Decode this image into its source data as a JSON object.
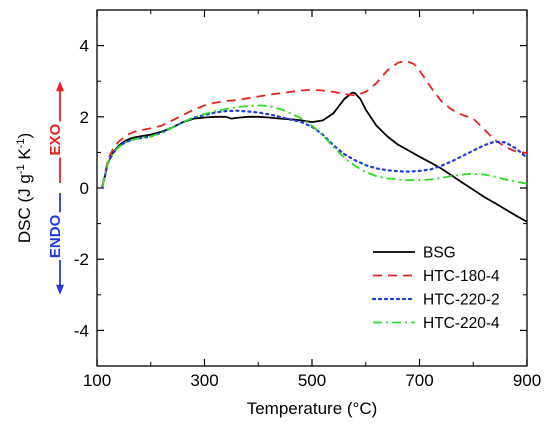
{
  "chart_data": {
    "type": "line",
    "xlabel": "Temperature (°C)",
    "ylabel": "DSC (J g⁻¹ K⁻¹)",
    "xlim": [
      100,
      900
    ],
    "ylim": [
      -5,
      5
    ],
    "xticks": [
      100,
      300,
      500,
      700,
      900
    ],
    "yticks": [
      -4,
      -2,
      0,
      2,
      4
    ],
    "grid": false,
    "legend": "bottom-right",
    "annotations": [
      {
        "text": "EXO",
        "color": "#e8231f",
        "direction": "up"
      },
      {
        "text": "ENDO",
        "color": "#1f3cd8",
        "direction": "down"
      }
    ],
    "series": [
      {
        "name": "BSG",
        "color": "#000000",
        "dash": "solid",
        "x": [
          110,
          115,
          120,
          130,
          140,
          150,
          160,
          170,
          180,
          200,
          220,
          240,
          260,
          280,
          300,
          320,
          340,
          350,
          360,
          380,
          400,
          420,
          440,
          460,
          480,
          500,
          520,
          540,
          560,
          575,
          580,
          590,
          600,
          620,
          640,
          660,
          680,
          700,
          720,
          740,
          760,
          780,
          800,
          820,
          840,
          860,
          880,
          900
        ],
        "y": [
          0.05,
          0.35,
          0.7,
          1.0,
          1.18,
          1.3,
          1.38,
          1.42,
          1.45,
          1.5,
          1.58,
          1.7,
          1.85,
          1.95,
          1.98,
          2.0,
          2.0,
          1.95,
          1.97,
          2.0,
          2.0,
          1.98,
          1.95,
          1.93,
          1.9,
          1.85,
          1.9,
          2.1,
          2.5,
          2.68,
          2.66,
          2.5,
          2.2,
          1.75,
          1.45,
          1.22,
          1.05,
          0.88,
          0.72,
          0.55,
          0.35,
          0.15,
          -0.05,
          -0.25,
          -0.42,
          -0.6,
          -0.78,
          -0.95
        ]
      },
      {
        "name": "HTC-180-4",
        "color": "#e8231f",
        "dash": "dashed",
        "x": [
          110,
          115,
          120,
          130,
          140,
          150,
          160,
          170,
          180,
          200,
          220,
          240,
          260,
          280,
          300,
          320,
          340,
          360,
          380,
          400,
          420,
          440,
          460,
          480,
          500,
          520,
          540,
          560,
          580,
          600,
          620,
          640,
          660,
          675,
          690,
          700,
          720,
          740,
          760,
          780,
          800,
          820,
          840,
          860,
          880,
          900
        ],
        "y": [
          0.05,
          0.4,
          0.8,
          1.1,
          1.3,
          1.42,
          1.52,
          1.58,
          1.62,
          1.68,
          1.75,
          1.9,
          2.05,
          2.2,
          2.32,
          2.4,
          2.44,
          2.47,
          2.52,
          2.57,
          2.62,
          2.66,
          2.7,
          2.74,
          2.76,
          2.74,
          2.7,
          2.64,
          2.6,
          2.7,
          2.95,
          3.3,
          3.52,
          3.57,
          3.48,
          3.3,
          2.85,
          2.45,
          2.2,
          2.05,
          1.95,
          1.65,
          1.35,
          1.15,
          1.02,
          0.98
        ]
      },
      {
        "name": "HTC-220-2",
        "color": "#1f3cd8",
        "dash": "dotted",
        "x": [
          110,
          115,
          120,
          130,
          140,
          150,
          160,
          170,
          180,
          200,
          220,
          240,
          260,
          280,
          300,
          320,
          340,
          360,
          380,
          400,
          420,
          440,
          460,
          480,
          500,
          520,
          540,
          560,
          580,
          600,
          620,
          640,
          660,
          680,
          700,
          720,
          740,
          760,
          780,
          800,
          820,
          840,
          860,
          880,
          900
        ],
        "y": [
          0.05,
          0.35,
          0.7,
          0.98,
          1.15,
          1.26,
          1.33,
          1.37,
          1.4,
          1.45,
          1.55,
          1.7,
          1.85,
          1.98,
          2.05,
          2.12,
          2.16,
          2.17,
          2.15,
          2.12,
          2.07,
          2.0,
          1.92,
          1.85,
          1.72,
          1.5,
          1.2,
          0.95,
          0.78,
          0.64,
          0.55,
          0.5,
          0.47,
          0.46,
          0.48,
          0.52,
          0.62,
          0.75,
          0.9,
          1.05,
          1.2,
          1.3,
          1.28,
          1.1,
          0.85
        ]
      },
      {
        "name": "HTC-220-4",
        "color": "#2ddc23",
        "dash": "dashdot",
        "x": [
          110,
          115,
          120,
          130,
          140,
          150,
          160,
          170,
          180,
          200,
          220,
          240,
          260,
          280,
          300,
          320,
          340,
          360,
          380,
          400,
          420,
          440,
          460,
          480,
          500,
          520,
          540,
          560,
          580,
          600,
          620,
          640,
          660,
          680,
          700,
          720,
          740,
          760,
          780,
          800,
          820,
          840,
          860,
          880,
          900
        ],
        "y": [
          0.05,
          0.35,
          0.7,
          0.98,
          1.15,
          1.26,
          1.33,
          1.37,
          1.4,
          1.45,
          1.55,
          1.7,
          1.85,
          1.98,
          2.08,
          2.16,
          2.22,
          2.27,
          2.3,
          2.32,
          2.3,
          2.22,
          2.1,
          1.95,
          1.75,
          1.48,
          1.15,
          0.85,
          0.62,
          0.45,
          0.33,
          0.27,
          0.24,
          0.22,
          0.22,
          0.24,
          0.28,
          0.34,
          0.38,
          0.4,
          0.38,
          0.32,
          0.24,
          0.18,
          0.12
        ]
      }
    ]
  }
}
